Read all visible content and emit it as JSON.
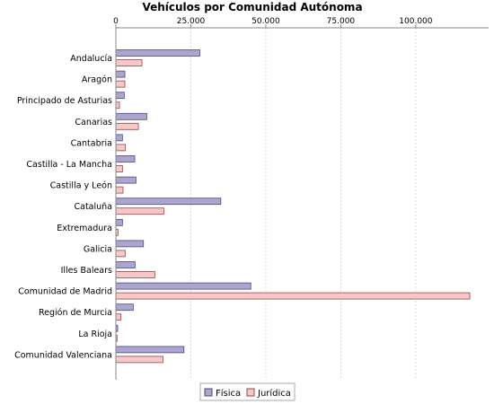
{
  "chart_data": {
    "type": "bar",
    "orientation": "horizontal",
    "title": "Vehículos por Comunidad Autónoma",
    "xlabel": "",
    "ylabel": "",
    "xlim": [
      0,
      118000
    ],
    "ticks": [
      0,
      25000,
      50000,
      75000,
      100000
    ],
    "tick_labels": [
      "0",
      "25.000",
      "50.000",
      "75.000",
      "100.000"
    ],
    "tick_position": "top",
    "grid": true,
    "legend_placement": "bottom-center",
    "categories": [
      "Andalucía",
      "Aragón",
      "Principado de Asturias",
      "Canarias",
      "Cantabria",
      "Castilla - La Mancha",
      "Castilla y León",
      "Cataluña",
      "Extremadura",
      "Galicia",
      "Illes Balears",
      "Comunidad de Madrid",
      "Región de Murcia",
      "La Rioja",
      "Comunidad Valenciana"
    ],
    "series": [
      {
        "name": "Física",
        "color": "#aaa6d0",
        "border": "#4d4a7a",
        "values": [
          28000,
          3000,
          2800,
          10300,
          2200,
          6300,
          6700,
          35000,
          2200,
          9200,
          6400,
          45000,
          5800,
          600,
          22700
        ]
      },
      {
        "name": "Jurídica",
        "color": "#f8c8c8",
        "border": "#8a4a4a",
        "values": [
          8700,
          3000,
          1200,
          7500,
          3200,
          2200,
          2400,
          16000,
          700,
          3100,
          13000,
          118000,
          1700,
          400,
          15700
        ]
      }
    ]
  }
}
